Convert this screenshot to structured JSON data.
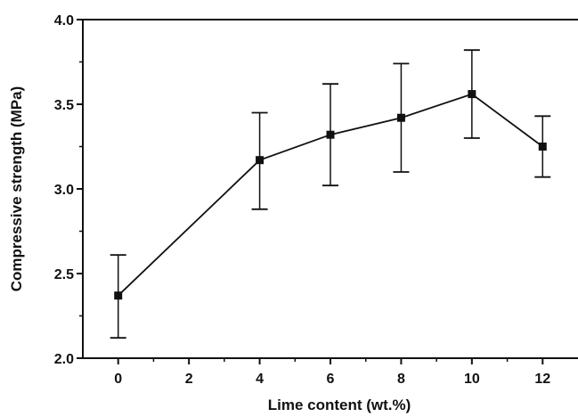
{
  "chart_data": {
    "type": "line",
    "title": "",
    "xlabel": "Lime content (wt.%)",
    "ylabel": "Compressive strength (MPa)",
    "xlim": [
      -1,
      13
    ],
    "ylim": [
      2.0,
      4.0
    ],
    "xticks": [
      0,
      2,
      4,
      6,
      8,
      10,
      12
    ],
    "yticks": [
      2.0,
      2.5,
      3.0,
      3.5,
      4.0
    ],
    "x_tick_labels": [
      "0",
      "2",
      "4",
      "6",
      "8",
      "10",
      "12"
    ],
    "y_tick_labels": [
      "2.0",
      "2.5",
      "3.0",
      "3.5",
      "4.0"
    ],
    "grid": false,
    "legend": "none",
    "series": [
      {
        "x": [
          0,
          4,
          6,
          8,
          10,
          12
        ],
        "y": [
          2.37,
          3.17,
          3.32,
          3.42,
          3.56,
          3.25
        ],
        "err_low": [
          2.12,
          2.88,
          3.02,
          3.1,
          3.3,
          3.07
        ],
        "err_high": [
          2.61,
          3.45,
          3.62,
          3.74,
          3.82,
          3.43
        ],
        "color": "#111111",
        "marker": "square"
      }
    ]
  }
}
